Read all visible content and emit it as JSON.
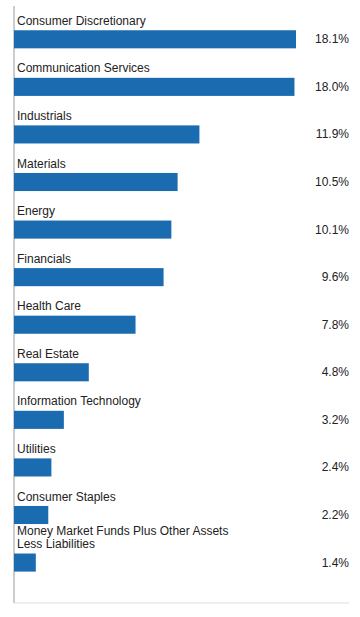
{
  "chart_data": {
    "type": "bar",
    "orientation": "horizontal",
    "categories": [
      "Money Market Funds Plus Other Assets\nLess Liabilities",
      "Consumer Staples",
      "Utilities",
      "Information Technology",
      "Real Estate",
      "Health Care",
      "Financials",
      "Energy",
      "Materials",
      "Industrials",
      "Communication Services",
      "Consumer Discretionary"
    ],
    "values": [
      1.4,
      2.2,
      2.4,
      3.2,
      4.8,
      7.8,
      9.6,
      10.1,
      10.5,
      11.9,
      18.0,
      18.1
    ],
    "value_labels": [
      "1.4%",
      "2.2%",
      "2.4%",
      "3.2%",
      "4.8%",
      "7.8%",
      "9.6%",
      "10.1%",
      "10.5%",
      "11.9%",
      "18.0%",
      "18.1%"
    ],
    "data_labels": true,
    "color": "#1B6BB0",
    "xlim": [
      0,
      21.5
    ],
    "tick_labels": false
  }
}
